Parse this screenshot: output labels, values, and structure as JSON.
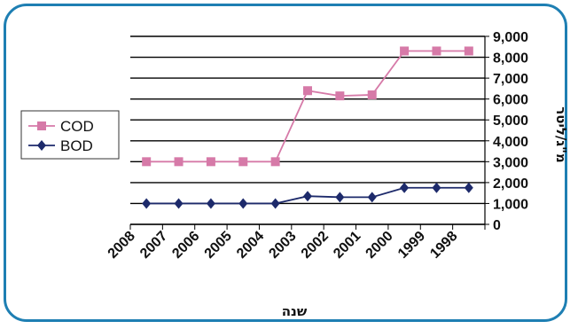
{
  "chart_data": {
    "type": "line",
    "title": "",
    "x": [
      "2008",
      "2007",
      "2006",
      "2005",
      "2004",
      "2003",
      "2002",
      "2001",
      "2000",
      "1999",
      "1998"
    ],
    "xlabel": "שנה",
    "ylabel": "מ\"ג/ליטר",
    "ylim": [
      0,
      9000
    ],
    "yticks": [
      "0",
      "1,000",
      "2,000",
      "3,000",
      "4,000",
      "5,000",
      "6,000",
      "7,000",
      "8,000",
      "9,000"
    ],
    "grid": "horizontal",
    "legend_position": "left",
    "series": [
      {
        "name": "COD",
        "color": "#d67aa8",
        "marker": "square",
        "values": [
          3000,
          3000,
          3000,
          3000,
          3000,
          6400,
          6150,
          6200,
          8300,
          8300,
          8300
        ]
      },
      {
        "name": "BOD",
        "color": "#1d2a6b",
        "marker": "diamond",
        "values": [
          1000,
          1000,
          1000,
          1000,
          1000,
          1350,
          1300,
          1300,
          1750,
          1750,
          1750
        ]
      }
    ]
  }
}
